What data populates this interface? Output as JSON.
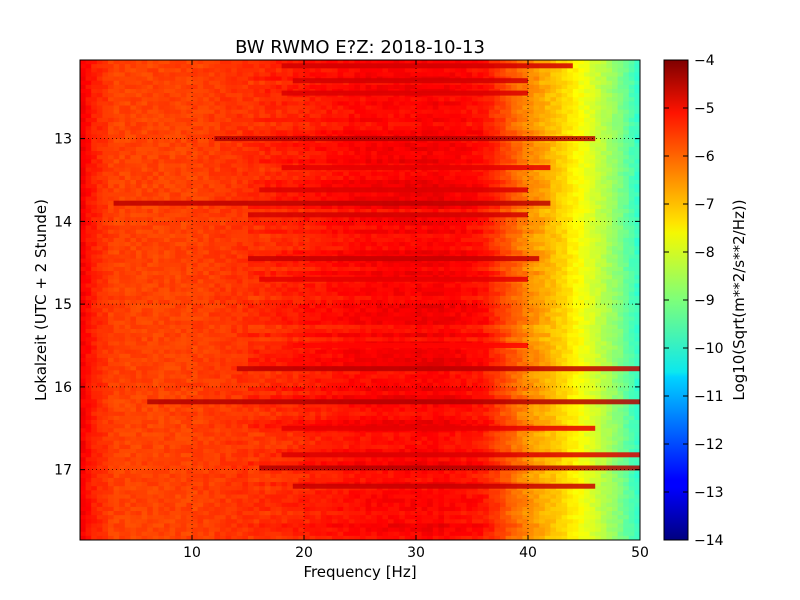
{
  "chart_data": {
    "type": "heatmap",
    "title": "BW RWMO E?Z: 2018-10-13",
    "xlabel": "Frequency [Hz]",
    "ylabel": "Lokalzeit (UTC + 2 Stunde)",
    "xlim": [
      0,
      50
    ],
    "ylim": [
      12.05,
      17.85
    ],
    "y_inverted": true,
    "x_ticks": [
      10,
      20,
      30,
      40,
      50
    ],
    "x_tick_labels": [
      "10",
      "20",
      "30",
      "40",
      "50"
    ],
    "y_ticks": [
      13,
      14,
      15,
      16,
      17
    ],
    "y_tick_labels": [
      "13",
      "14",
      "15",
      "16",
      "17"
    ],
    "grid": true,
    "colormap": "jet",
    "colorbar": {
      "label": "Log10(Sqrt(m**2/s**2/Hz))",
      "range": [
        -14,
        -4
      ],
      "ticks": [
        -4,
        -5,
        -6,
        -7,
        -8,
        -9,
        -10,
        -11,
        -12,
        -13,
        -14
      ],
      "tick_labels": [
        "−4",
        "−5",
        "−6",
        "−7",
        "−8",
        "−9",
        "−10",
        "−11",
        "−12",
        "−13",
        "−14"
      ]
    },
    "spectral_profile": {
      "frequency_hz": [
        0,
        1,
        3,
        10,
        18,
        25,
        32,
        36,
        40,
        43,
        46,
        48,
        50
      ],
      "log_psd": [
        -5.1,
        -5.5,
        -5.9,
        -5.9,
        -5.6,
        -5.3,
        -5.2,
        -5.4,
        -6.6,
        -7.3,
        -8.2,
        -8.9,
        -9.8
      ]
    },
    "loud_bands": [
      {
        "time": 12.12,
        "freq_range": [
          18,
          44
        ],
        "level": -4.8
      },
      {
        "time": 12.3,
        "freq_range": [
          19,
          40
        ],
        "level": -4.8
      },
      {
        "time": 12.45,
        "freq_range": [
          18,
          40
        ],
        "level": -4.9
      },
      {
        "time": 13.0,
        "freq_range": [
          12,
          46
        ],
        "level": -4.5
      },
      {
        "time": 13.35,
        "freq_range": [
          18,
          42
        ],
        "level": -5.0
      },
      {
        "time": 13.62,
        "freq_range": [
          16,
          40
        ],
        "level": -4.9
      },
      {
        "time": 13.78,
        "freq_range": [
          3,
          42
        ],
        "level": -4.6
      },
      {
        "time": 13.92,
        "freq_range": [
          15,
          40
        ],
        "level": -4.8
      },
      {
        "time": 14.45,
        "freq_range": [
          15,
          41
        ],
        "level": -4.7
      },
      {
        "time": 14.7,
        "freq_range": [
          16,
          40
        ],
        "level": -5.0
      },
      {
        "time": 15.5,
        "freq_range": [
          19,
          40
        ],
        "level": -5.3
      },
      {
        "time": 15.78,
        "freq_range": [
          14,
          50
        ],
        "level": -4.6
      },
      {
        "time": 16.18,
        "freq_range": [
          6,
          50
        ],
        "level": -4.5
      },
      {
        "time": 16.5,
        "freq_range": [
          18,
          46
        ],
        "level": -5.0
      },
      {
        "time": 16.82,
        "freq_range": [
          18,
          50
        ],
        "level": -4.9
      },
      {
        "time": 16.98,
        "freq_range": [
          16,
          50
        ],
        "level": -4.5
      },
      {
        "time": 17.2,
        "freq_range": [
          19,
          46
        ],
        "level": -4.7
      }
    ]
  }
}
